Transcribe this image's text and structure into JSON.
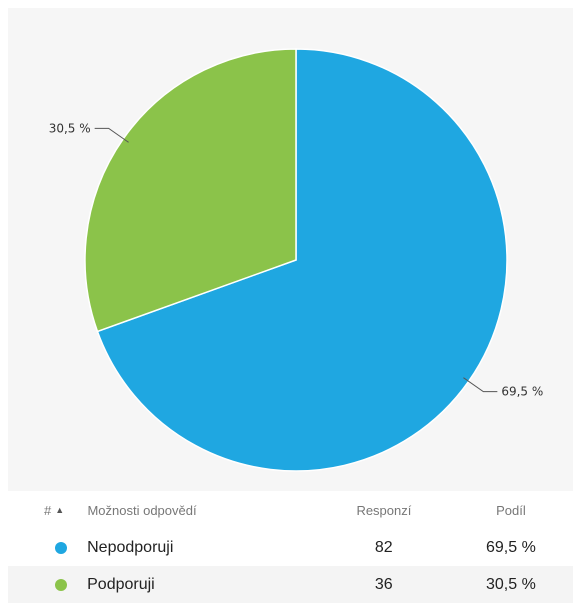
{
  "chart_data": {
    "type": "pie",
    "slices": [
      {
        "label": "Nepodporuji",
        "value": 69.5,
        "label_text": "69,5 %",
        "color": "#1fa7e1"
      },
      {
        "label": "Podporuji",
        "value": 30.5,
        "label_text": "30,5 %",
        "color": "#8bc34a"
      }
    ],
    "start_angle_deg": 0,
    "direction": "clockwise"
  },
  "table": {
    "headers": {
      "hash": "#",
      "options": "Možnosti odpovědí",
      "responses": "Responzí",
      "share": "Podíl"
    },
    "rows": [
      {
        "color": "#1fa7e1",
        "option": "Nepodporuji",
        "responses": "82",
        "share": "69,5 %"
      },
      {
        "color": "#8bc34a",
        "option": "Podporuji",
        "responses": "36",
        "share": "30,5 %"
      }
    ]
  }
}
